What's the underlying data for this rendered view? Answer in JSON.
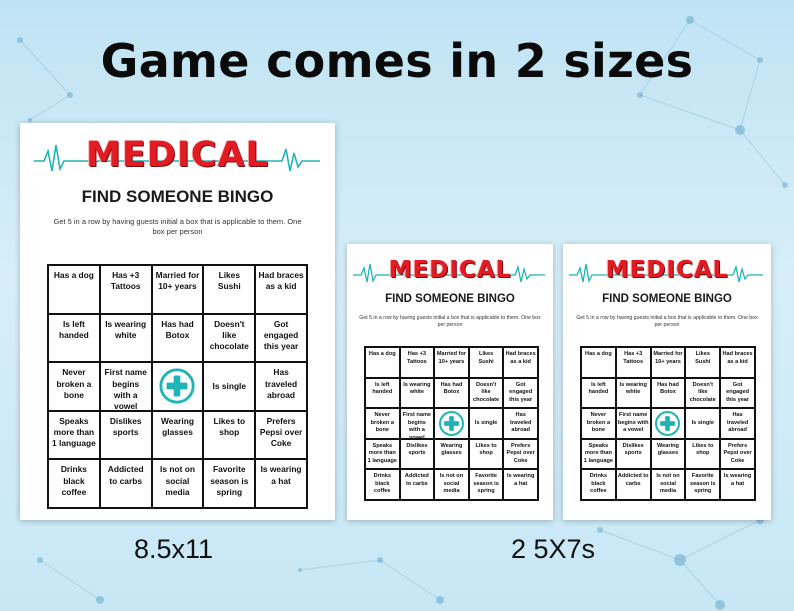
{
  "headline": "Game comes in 2 sizes",
  "card": {
    "title_main": "MEDICAL",
    "title_sub": "FIND SOMEONE BINGO",
    "instructions": "Get 5 in a row by having guests initial a box that is applicable to them.  One box per person",
    "free_icon": "medical-cross-icon",
    "accent_color": "#e31b23",
    "teal_color": "#1fb5b8",
    "cells": [
      "Has a dog",
      "Has +3 Tattoos",
      "Married for 10+ years",
      "Likes Sushi",
      "Had braces as a kid",
      "Is left handed",
      "Is wearing white",
      "Has had Botox",
      "Doesn't like chocolate",
      "Got engaged this year",
      "Never broken a bone",
      "First name begins with a vowel",
      "",
      "Is single",
      "Has traveled abroad",
      "Speaks more than 1 language",
      "Dislikes sports",
      "Wearing glasses",
      "Likes to shop",
      "Prefers Pepsi over Coke",
      "Drinks black coffee",
      "Addicted to carbs",
      "Is not on social media",
      "Favorite season is spring",
      "Is wearing a hat"
    ]
  },
  "sizes": {
    "large_label": "8.5x11",
    "small_label": "2 5X7s"
  }
}
